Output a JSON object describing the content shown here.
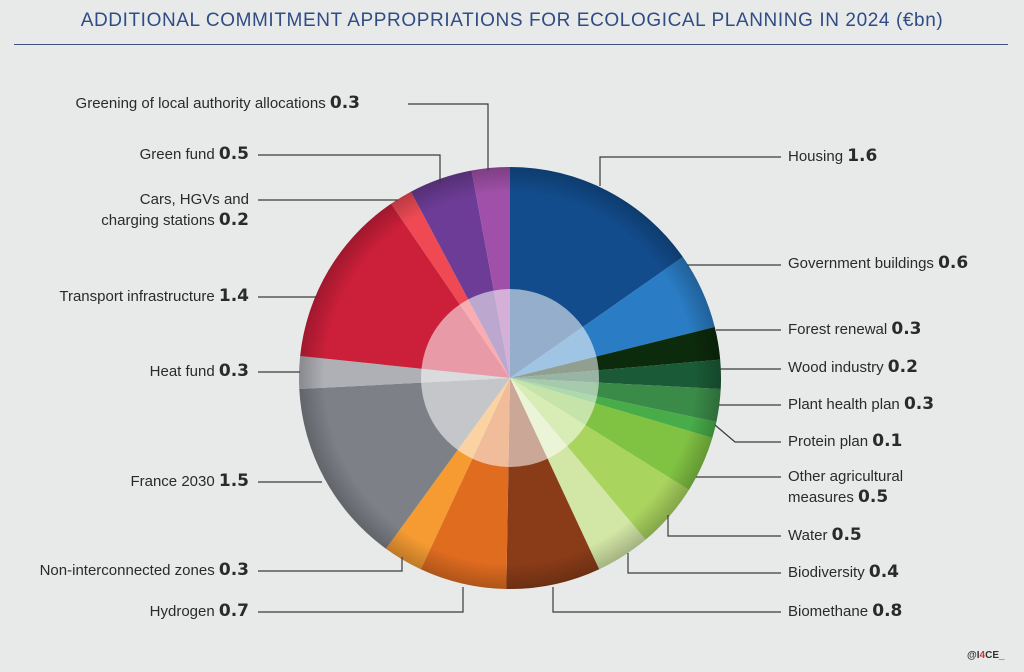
{
  "title": "ADDITIONAL COMMITMENT APPROPRIATIONS FOR ECOLOGICAL PLANNING IN 2024 (€bn)",
  "credit": {
    "prefix": "@I",
    "accent": "4",
    "suffix": "CE_"
  },
  "chart_data": {
    "type": "pie",
    "title": "ADDITIONAL COMMITMENT APPROPRIATIONS FOR ECOLOGICAL PLANNING IN 2024 (€bn)",
    "unit": "€bn",
    "style": "donut with translucent inner ring",
    "categories": [
      "Housing",
      "Government buildings",
      "Forest renewal",
      "Wood industry",
      "Plant health plan",
      "Protein plan",
      "Other agricultural measures",
      "Water",
      "Biodiversity",
      "Biomethane",
      "Hydrogen",
      "Non-interconnected zones",
      "France 2030",
      "Heat fund",
      "Transport infrastructure",
      "Cars, HGVs and charging stations",
      "Green fund",
      "Greening of local authority allocations"
    ],
    "values": [
      1.6,
      0.6,
      0.3,
      0.2,
      0.3,
      0.1,
      0.5,
      0.5,
      0.4,
      0.8,
      0.7,
      0.3,
      1.5,
      0.3,
      1.4,
      0.2,
      0.5,
      0.3
    ],
    "colors": [
      "#124c8c",
      "#2a7cc4",
      "#0c2a0c",
      "#1a5a36",
      "#3a8a48",
      "#48ad48",
      "#80c242",
      "#a9d45e",
      "#d2e6a6",
      "#8a3c18",
      "#e06c20",
      "#f59b32",
      "#7d8087",
      "#aeb0b5",
      "#cc1f3a",
      "#ef4a54",
      "#6c3c96",
      "#a050a8"
    ],
    "boundaries_deg": [
      0,
      55,
      76,
      85,
      93,
      102,
      106.5,
      122,
      140,
      155,
      181,
      205,
      216,
      267,
      276,
      325.7,
      332,
      349.5,
      360
    ],
    "total": 10.5
  },
  "labels": {
    "greening": {
      "name": "Greening of local authority allocations",
      "value": "0.3"
    },
    "green_fund": {
      "name": "Green fund",
      "value": "0.5"
    },
    "cars_line1": "Cars, HGVs and",
    "cars": {
      "name": "charging stations",
      "value": "0.2"
    },
    "transport": {
      "name": "Transport infrastructure",
      "value": "1.4"
    },
    "heat": {
      "name": "Heat fund",
      "value": "0.3"
    },
    "france": {
      "name": "France 2030",
      "value": "1.5"
    },
    "nonint": {
      "name": "Non-interconnected zones",
      "value": "0.3"
    },
    "hydrogen": {
      "name": "Hydrogen",
      "value": "0.7"
    },
    "housing": {
      "name": "Housing",
      "value": "1.6"
    },
    "gov": {
      "name": "Government buildings",
      "value": "0.6"
    },
    "forest": {
      "name": "Forest renewal",
      "value": "0.3"
    },
    "wood": {
      "name": "Wood industry",
      "value": "0.2"
    },
    "plant": {
      "name": "Plant health plan",
      "value": "0.3"
    },
    "protein": {
      "name": "Protein plan",
      "value": "0.1"
    },
    "otheragri_line1": "Other agricultural",
    "otheragri": {
      "name": "measures",
      "value": "0.5"
    },
    "water": {
      "name": "Water",
      "value": "0.5"
    },
    "biodiversity": {
      "name": "Biodiversity",
      "value": "0.4"
    },
    "biomethane": {
      "name": "Biomethane",
      "value": "0.8"
    }
  }
}
